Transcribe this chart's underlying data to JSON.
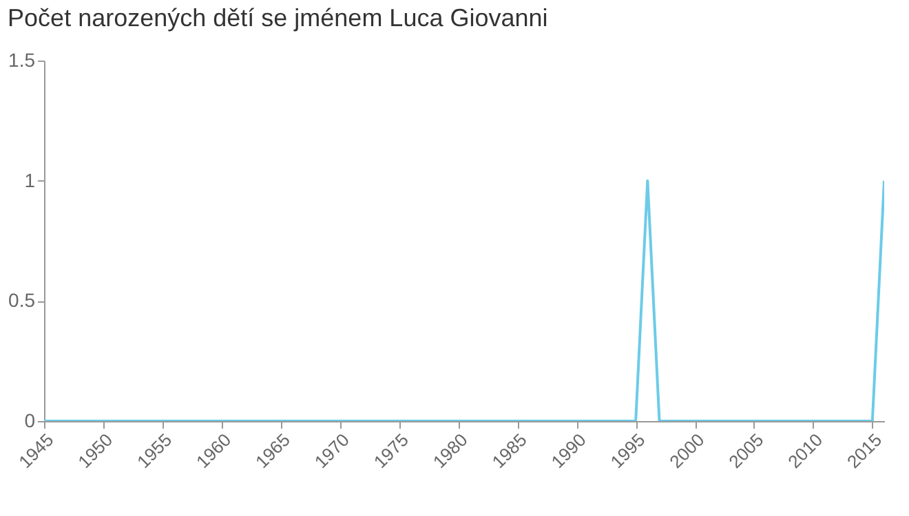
{
  "chart_data": {
    "type": "line",
    "title": "Počet narozených dětí se jménem Luca Giovanni",
    "x": [
      1945,
      1995,
      1996,
      1997,
      2015,
      2016
    ],
    "series": [
      {
        "color": "#6ccbe8",
        "values": [
          0,
          0,
          1,
          0,
          0,
          1
        ]
      }
    ],
    "xlim": [
      1945,
      2016
    ],
    "xticks": [
      1945,
      1950,
      1955,
      1960,
      1965,
      1970,
      1975,
      1980,
      1985,
      1990,
      1995,
      2000,
      2005,
      2010,
      2015
    ],
    "ylim": [
      0,
      1.5
    ],
    "yticks": [
      0,
      0.5,
      1,
      1.5
    ],
    "grid": false,
    "marker": "none",
    "line_style": "solid"
  }
}
